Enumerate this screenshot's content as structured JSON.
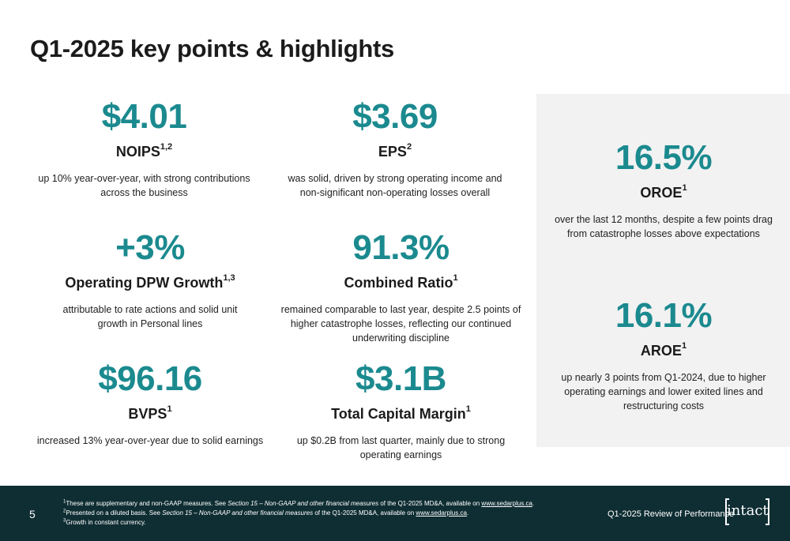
{
  "title": "Q1-2025 key points & highlights",
  "colors": {
    "accent": "#1b8a8f",
    "footer_bg": "#0f2e33",
    "panel_bg": "#f2f2f2"
  },
  "metrics": [
    {
      "value": "$4.01",
      "label": "NOIPS",
      "sup": "1,2",
      "desc": "up 10% year-over-year, with strong contributions across the business"
    },
    {
      "value": "$3.69",
      "label": "EPS",
      "sup": "2",
      "desc": "was solid, driven by strong operating income and non-significant non-operating losses overall"
    },
    {
      "value": "+3%",
      "label": "Operating DPW Growth",
      "sup": "1,3",
      "desc": "attributable to rate actions and solid unit growth in Personal lines"
    },
    {
      "value": "91.3%",
      "label": "Combined Ratio",
      "sup": "1",
      "desc": "remained comparable to last year, despite 2.5 points of higher catastrophe losses, reflecting our continued underwriting discipline"
    },
    {
      "value": "$96.16",
      "label": "BVPS",
      "sup": "1",
      "desc": "increased 13% year-over-year due to solid earnings"
    },
    {
      "value": "$3.1B",
      "label": "Total Capital Margin",
      "sup": "1",
      "desc": "up $0.2B from last quarter, mainly due to strong operating earnings"
    },
    {
      "value": "16.5%",
      "label": "OROE",
      "sup": "1",
      "desc": "over the last 12 months, despite a few points drag from catastrophe losses above expectations"
    },
    {
      "value": "16.1%",
      "label": "AROE",
      "sup": "1",
      "desc": "up nearly 3 points from Q1-2024, due to higher operating earnings and lower exited lines and restructuring costs"
    }
  ],
  "footer": {
    "page": "5",
    "notes": [
      {
        "num": "1",
        "pre": "These are supplementary and non-GAAP measures. See ",
        "ital": "Section 15 – Non-GAAP and other financial measures",
        "post": " of the Q1-2025 MD&A, available on ",
        "link": "www.sedarplus.ca",
        "end": "."
      },
      {
        "num": "2",
        "pre": "Presented on a diluted basis. See ",
        "ital": "Section 15 – Non-GAAP and other financial measures",
        "post": " of the Q1-2025 MD&A, available on ",
        "link": "www.sedarplus.ca",
        "end": "."
      },
      {
        "num": "3",
        "pre": "Growth in constant currency.",
        "ital": "",
        "post": "",
        "link": "",
        "end": ""
      }
    ],
    "review": "Q1-2025 Review of Performance",
    "logo": "intact"
  }
}
